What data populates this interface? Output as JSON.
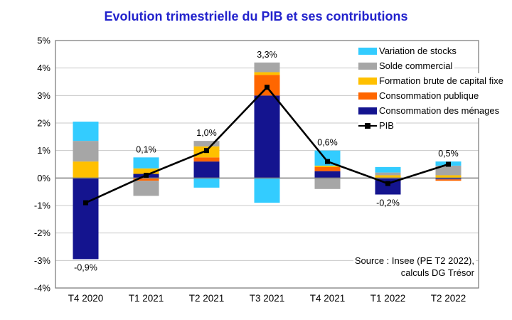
{
  "title": "Evolution trimestrielle du PIB et ses contributions",
  "source": {
    "line1": "Source : Insee (PE T2 2022),",
    "line2": "calculs DG Trésor"
  },
  "colors": {
    "title_text": "#2222CC",
    "grid": "#C8C8C8",
    "zero_line": "#7F7F7F",
    "plot_border": "#7F7F7F",
    "axis_text": "#000000"
  },
  "chart_data": {
    "type": "bar",
    "subtype": "stacked-bars-with-line",
    "title": "Evolution trimestrielle du PIB et ses contributions",
    "categories": [
      "T4 2020",
      "T1 2021",
      "T2 2021",
      "T3 2021",
      "T4 2021",
      "T1 2022",
      "T2 2022"
    ],
    "stack_order_note": "series listed bottom-to-top of positive stack; negatives stack downward in same order",
    "series": [
      {
        "name": "Consommation des ménages",
        "color": "#14148F",
        "values": [
          -2.95,
          0.15,
          0.6,
          3.0,
          0.25,
          -0.6,
          -0.05
        ]
      },
      {
        "name": "Consommation publique",
        "color": "#FF6600",
        "values": [
          0.0,
          -0.1,
          0.15,
          0.75,
          0.15,
          0.0,
          -0.05
        ]
      },
      {
        "name": "Formation brute de capital fixe",
        "color": "#FFC000",
        "values": [
          0.6,
          0.2,
          0.4,
          0.1,
          0.05,
          0.1,
          0.1
        ]
      },
      {
        "name": "Solde commercial",
        "color": "#A6A6A6",
        "values": [
          0.75,
          -0.55,
          0.2,
          0.35,
          -0.4,
          0.1,
          0.35
        ]
      },
      {
        "name": "Variation de stocks",
        "color": "#33CCFF",
        "values": [
          0.7,
          0.4,
          -0.35,
          -0.9,
          0.55,
          0.2,
          0.15
        ]
      }
    ],
    "line_series": {
      "name": "PIB",
      "color": "#000000",
      "values": [
        -0.9,
        0.1,
        1.0,
        3.3,
        0.6,
        -0.2,
        0.5
      ],
      "labels": [
        "-0,9%",
        "0,1%",
        "1,0%",
        "3,3%",
        "0,6%",
        "-0,2%",
        "0,5%"
      ]
    },
    "ylim": [
      -4,
      5
    ],
    "ytick_labels": [
      "5%",
      "4%",
      "3%",
      "2%",
      "1%",
      "0%",
      "-1%",
      "-2%",
      "-3%",
      "-4%"
    ],
    "grid": true,
    "legend_position": "top-right-inside",
    "legend": [
      {
        "label": "Variation de stocks",
        "swatch": "box",
        "color": "#33CCFF"
      },
      {
        "label": "Solde commercial",
        "swatch": "box",
        "color": "#A6A6A6"
      },
      {
        "label": "Formation brute de capital fixe",
        "swatch": "box",
        "color": "#FFC000"
      },
      {
        "label": "Consommation publique",
        "swatch": "box",
        "color": "#FF6600"
      },
      {
        "label": "Consommation des ménages",
        "swatch": "box",
        "color": "#14148F"
      },
      {
        "label": "PIB",
        "swatch": "line-marker",
        "color": "#000000"
      }
    ]
  }
}
